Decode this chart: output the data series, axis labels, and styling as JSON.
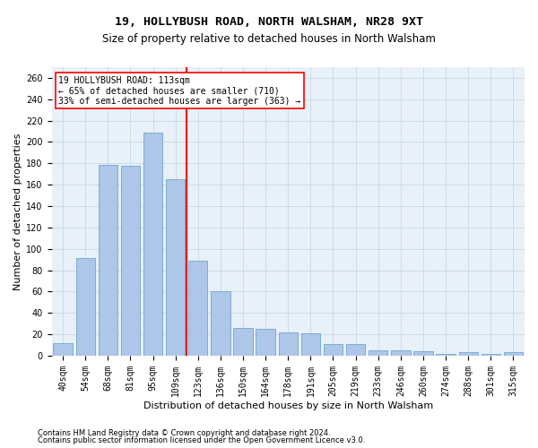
{
  "title1": "19, HOLLYBUSH ROAD, NORTH WALSHAM, NR28 9XT",
  "title2": "Size of property relative to detached houses in North Walsham",
  "xlabel": "Distribution of detached houses by size in North Walsham",
  "ylabel": "Number of detached properties",
  "categories": [
    "40sqm",
    "54sqm",
    "68sqm",
    "81sqm",
    "95sqm",
    "109sqm",
    "123sqm",
    "136sqm",
    "150sqm",
    "164sqm",
    "178sqm",
    "191sqm",
    "205sqm",
    "219sqm",
    "233sqm",
    "246sqm",
    "260sqm",
    "274sqm",
    "288sqm",
    "301sqm",
    "315sqm"
  ],
  "values": [
    12,
    91,
    179,
    178,
    209,
    165,
    89,
    60,
    26,
    25,
    22,
    21,
    11,
    11,
    5,
    5,
    4,
    2,
    3,
    2,
    3
  ],
  "bar_color": "#aec6e8",
  "bar_edge_color": "#5a9fc8",
  "annotation_text": "19 HOLLYBUSH ROAD: 113sqm\n← 65% of detached houses are smaller (710)\n33% of semi-detached houses are larger (363) →",
  "annotation_box_color": "white",
  "annotation_box_edge_color": "red",
  "vline_color": "red",
  "vline_x_index": 5,
  "ylim": [
    0,
    270
  ],
  "yticks": [
    0,
    20,
    40,
    60,
    80,
    100,
    120,
    140,
    160,
    180,
    200,
    220,
    240,
    260
  ],
  "grid_color": "#c8d8ea",
  "background_color": "#e8f0f8",
  "footer1": "Contains HM Land Registry data © Crown copyright and database right 2024.",
  "footer2": "Contains public sector information licensed under the Open Government Licence v3.0.",
  "title1_fontsize": 9.5,
  "title2_fontsize": 8.5,
  "xlabel_fontsize": 8,
  "ylabel_fontsize": 8,
  "tick_fontsize": 7,
  "annotation_fontsize": 7,
  "footer_fontsize": 6
}
